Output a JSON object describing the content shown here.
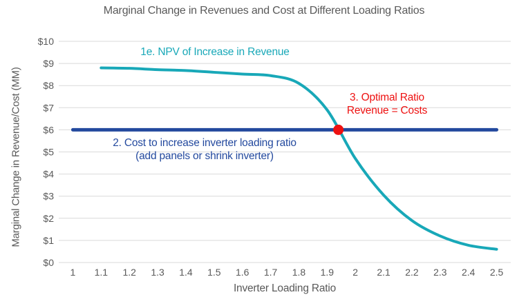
{
  "colors": {
    "revenue_line": "#18A8B8",
    "cost_line": "#23499E",
    "optimal_marker": "#EE1111",
    "axis_text": "#595959",
    "gridline": "#D9D9D9"
  },
  "chart_data": {
    "type": "line",
    "title": "Marginal Change in Revenues and Cost at Different Loading Ratios",
    "xlabel": "Inverter Loading Ratio",
    "ylabel": "Marginal Change in Revenue/Cost (MM)",
    "x_ticks": [
      "1",
      "1.1",
      "1.2",
      "1.3",
      "1.4",
      "1.5",
      "1.6",
      "1.7",
      "1.8",
      "1.9",
      "2",
      "2.1",
      "2.2",
      "2.3",
      "2.4",
      "2.5"
    ],
    "x_values": [
      1,
      1.1,
      1.2,
      1.3,
      1.4,
      1.5,
      1.6,
      1.7,
      1.8,
      1.9,
      2,
      2.1,
      2.2,
      2.3,
      2.4,
      2.5
    ],
    "y_ticks": [
      "$0",
      "$1",
      "$2",
      "$3",
      "$4",
      "$5",
      "$6",
      "$7",
      "$8",
      "$9",
      "$10"
    ],
    "ylim": [
      0,
      10
    ],
    "grid": "horizontal",
    "legend": "none-inline-annotations",
    "series": [
      {
        "name": "1e. NPV of Increase in Revenue",
        "color": "#18A8B8",
        "x": [
          1.1,
          1.2,
          1.3,
          1.4,
          1.5,
          1.6,
          1.7,
          1.8,
          1.9,
          2,
          2.1,
          2.2,
          2.3,
          2.4,
          2.5
        ],
        "values": [
          8.8,
          8.78,
          8.72,
          8.68,
          8.6,
          8.52,
          8.45,
          8.1,
          6.9,
          4.7,
          3.05,
          1.9,
          1.2,
          0.78,
          0.6
        ]
      },
      {
        "name": "2. Cost to increase inverter loading ratio (add panels or shrink inverter)",
        "color": "#23499E",
        "x": [
          1,
          2.5
        ],
        "values": [
          6,
          6
        ]
      }
    ],
    "optimal_point": {
      "x": 1.94,
      "y": 6,
      "color": "#EE1111"
    },
    "annotations": {
      "revenue_label": "1e. NPV of Increase in Revenue",
      "cost_label_line1": "2. Cost to increase inverter loading ratio",
      "cost_label_line2": "(add panels or shrink inverter)",
      "optimal_label_line1": "3. Optimal Ratio",
      "optimal_label_line2": "Revenue = Costs"
    }
  }
}
